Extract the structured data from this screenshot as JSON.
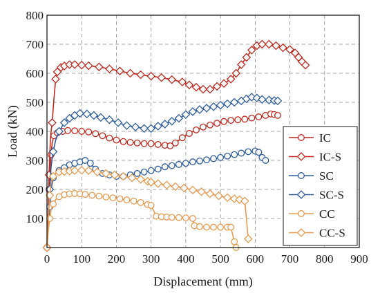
{
  "chart_data": {
    "type": "line",
    "title": "",
    "xlabel": "Displacement (mm)",
    "ylabel": "Load (kN)",
    "xlim": [
      0,
      900
    ],
    "ylim": [
      0,
      800
    ],
    "xticks": [
      "0",
      "100",
      "200",
      "300",
      "400",
      "500",
      "600",
      "700",
      "800",
      "900"
    ],
    "yticks": [
      "100",
      "200",
      "300",
      "400",
      "500",
      "600",
      "700",
      "800"
    ],
    "grid": true,
    "legend_position": "right",
    "series": [
      {
        "name": "IC",
        "color": "#c0281e",
        "marker": "circle",
        "x": [
          0,
          3,
          6,
          9,
          12,
          15,
          20,
          30,
          45,
          60,
          80,
          100,
          120,
          140,
          160,
          180,
          200,
          220,
          240,
          260,
          280,
          300,
          320,
          340,
          355,
          370,
          390,
          410,
          430,
          450,
          470,
          490,
          510,
          530,
          550,
          570,
          590,
          610,
          630,
          645,
          655,
          665
        ],
        "y": [
          0,
          100,
          200,
          260,
          320,
          360,
          385,
          395,
          400,
          403,
          402,
          400,
          398,
          392,
          385,
          377,
          370,
          365,
          362,
          360,
          358,
          358,
          355,
          352,
          350,
          360,
          378,
          393,
          405,
          415,
          422,
          428,
          434,
          438,
          440,
          442,
          446,
          450,
          455,
          460,
          458,
          455
        ]
      },
      {
        "name": "IC-S",
        "color": "#c0281e",
        "marker": "diamond",
        "x": [
          0,
          3,
          6,
          10,
          15,
          20,
          25,
          30,
          40,
          50,
          65,
          80,
          100,
          120,
          150,
          180,
          210,
          240,
          270,
          300,
          330,
          360,
          390,
          410,
          430,
          450,
          470,
          490,
          510,
          530,
          545,
          560,
          575,
          590,
          605,
          620,
          640,
          660,
          680,
          700,
          715,
          725,
          735,
          745
        ],
        "y": [
          0,
          100,
          250,
          380,
          430,
          510,
          580,
          605,
          620,
          625,
          630,
          630,
          628,
          626,
          622,
          615,
          608,
          600,
          595,
          590,
          585,
          578,
          570,
          560,
          552,
          545,
          545,
          555,
          565,
          580,
          600,
          630,
          655,
          680,
          695,
          700,
          700,
          695,
          688,
          682,
          670,
          655,
          640,
          628
        ]
      },
      {
        "name": "SC",
        "color": "#2e5d9e",
        "marker": "circle",
        "x": [
          0,
          4,
          8,
          12,
          18,
          25,
          35,
          50,
          65,
          80,
          95,
          110,
          125,
          140,
          160,
          180,
          200,
          220,
          240,
          260,
          280,
          300,
          320,
          340,
          360,
          380,
          400,
          420,
          440,
          460,
          480,
          500,
          520,
          540,
          560,
          580,
          600,
          610,
          620,
          630
        ],
        "y": [
          0,
          70,
          140,
          200,
          240,
          255,
          265,
          275,
          285,
          290,
          295,
          300,
          290,
          270,
          255,
          250,
          245,
          245,
          250,
          255,
          260,
          265,
          270,
          278,
          282,
          286,
          290,
          295,
          298,
          302,
          306,
          310,
          315,
          320,
          325,
          330,
          332,
          328,
          310,
          300
        ]
      },
      {
        "name": "SC-S",
        "color": "#2e5d9e",
        "marker": "diamond",
        "x": [
          0,
          4,
          8,
          12,
          18,
          25,
          35,
          50,
          65,
          80,
          95,
          115,
          135,
          155,
          180,
          205,
          230,
          255,
          280,
          300,
          320,
          340,
          360,
          380,
          400,
          420,
          440,
          460,
          480,
          500,
          520,
          540,
          560,
          575,
          590,
          605,
          620,
          640,
          655,
          665
        ],
        "y": [
          0,
          100,
          200,
          280,
          330,
          370,
          400,
          430,
          445,
          455,
          462,
          460,
          455,
          448,
          440,
          430,
          420,
          415,
          410,
          410,
          418,
          425,
          435,
          445,
          458,
          468,
          475,
          480,
          485,
          490,
          495,
          500,
          505,
          512,
          518,
          515,
          510,
          508,
          506,
          505
        ]
      },
      {
        "name": "CC",
        "color": "#e89a4e",
        "marker": "circle",
        "x": [
          0,
          4,
          8,
          12,
          18,
          25,
          35,
          50,
          65,
          80,
          95,
          110,
          130,
          150,
          170,
          190,
          210,
          230,
          250,
          270,
          290,
          300,
          315,
          330,
          345,
          360,
          380,
          400,
          420,
          425,
          440,
          460,
          480,
          500,
          520,
          530,
          540,
          545
        ],
        "y": [
          0,
          60,
          100,
          130,
          150,
          165,
          175,
          182,
          185,
          186,
          185,
          183,
          180,
          177,
          174,
          171,
          168,
          164,
          160,
          155,
          148,
          145,
          108,
          106,
          105,
          104,
          103,
          102,
          100,
          75,
          72,
          70,
          70,
          70,
          70,
          70,
          20,
          0
        ]
      },
      {
        "name": "CC-S",
        "color": "#e89a4e",
        "marker": "diamond",
        "x": [
          0,
          4,
          8,
          12,
          18,
          25,
          35,
          50,
          65,
          80,
          100,
          120,
          145,
          170,
          195,
          220,
          245,
          270,
          290,
          300,
          320,
          345,
          370,
          395,
          420,
          445,
          470,
          495,
          520,
          540,
          555,
          570,
          580
        ],
        "y": [
          0,
          100,
          180,
          220,
          245,
          255,
          260,
          262,
          263,
          265,
          266,
          265,
          260,
          255,
          250,
          245,
          240,
          235,
          228,
          225,
          220,
          215,
          210,
          205,
          198,
          192,
          185,
          178,
          172,
          168,
          165,
          160,
          30
        ]
      }
    ]
  }
}
